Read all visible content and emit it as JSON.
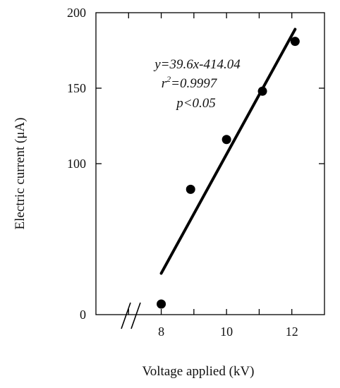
{
  "chart_data": {
    "type": "scatter",
    "xlabel": "Voltage applied (kV)",
    "ylabel": "Electric current (μA)",
    "x_ticks": [
      "8",
      "10",
      "12"
    ],
    "y_ticks": [
      "0",
      "100",
      "150",
      "200"
    ],
    "xlim": [
      6,
      13
    ],
    "ylim": [
      0,
      200
    ],
    "x_axis_break": true,
    "grid": false,
    "series": [
      {
        "x": [
          8,
          8.9,
          10,
          11.1,
          12.1
        ],
        "y": [
          7,
          83,
          116,
          148,
          181
        ],
        "fit_line": true
      }
    ],
    "annotations": {
      "equation": "y=39.6x-414.04",
      "r2_prefix": "r",
      "r2_sup": "2",
      "r2_value": "=0.9997",
      "p_value": "p<0.05"
    }
  }
}
